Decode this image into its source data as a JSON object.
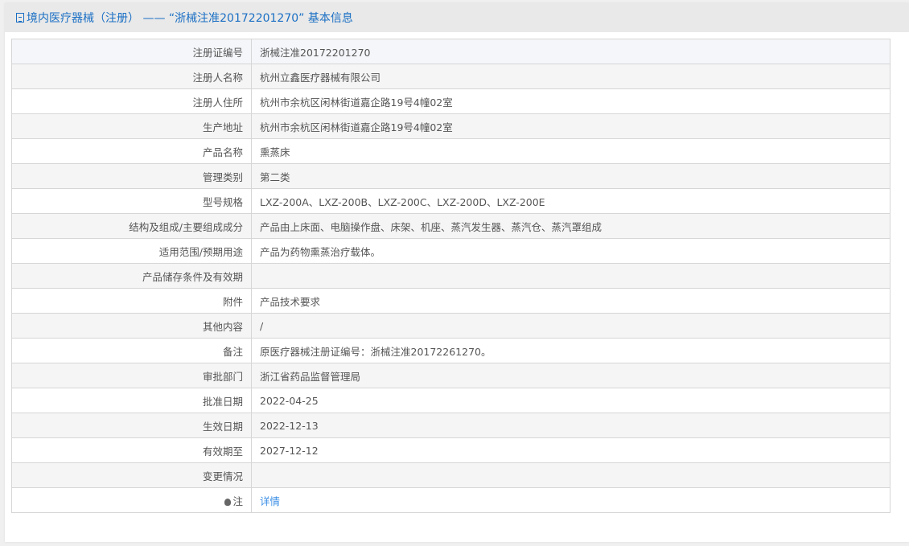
{
  "header": {
    "title": "境内医疗器械（注册） ——  “浙械注准20172201270”  基本信息",
    "icon": "document-icon"
  },
  "rows": [
    {
      "label": "注册证编号",
      "value": "浙械注准20172201270"
    },
    {
      "label": "注册人名称",
      "value": "杭州立鑫医疗器械有限公司"
    },
    {
      "label": "注册人住所",
      "value": "杭州市余杭区闲林街道嘉企路19号4幢02室"
    },
    {
      "label": "生产地址",
      "value": "杭州市余杭区闲林街道嘉企路19号4幢02室"
    },
    {
      "label": "产品名称",
      "value": "熏蒸床"
    },
    {
      "label": "管理类别",
      "value": "第二类"
    },
    {
      "label": "型号规格",
      "value": "LXZ-200A、LXZ-200B、LXZ-200C、LXZ-200D、LXZ-200E"
    },
    {
      "label": "结构及组成/主要组成成分",
      "value": "产品由上床面、电脑操作盘、床架、机座、蒸汽发生器、蒸汽仓、蒸汽罩组成"
    },
    {
      "label": "适用范围/预期用途",
      "value": "产品为药物熏蒸治疗载体。"
    },
    {
      "label": "产品储存条件及有效期",
      "value": ""
    },
    {
      "label": "附件",
      "value": "产品技术要求"
    },
    {
      "label": "其他内容",
      "value": "/"
    },
    {
      "label": "备注",
      "value": "原医疗器械注册证编号：浙械注准20172261270。"
    },
    {
      "label": "审批部门",
      "value": "浙江省药品监督管理局"
    },
    {
      "label": "批准日期",
      "value": "2022-04-25"
    },
    {
      "label": "生效日期",
      "value": "2022-12-13"
    },
    {
      "label": "有效期至",
      "value": "2027-12-12"
    },
    {
      "label": "变更情况",
      "value": ""
    }
  ],
  "note_row": {
    "label": "注",
    "icon": "lightbulb-icon",
    "link": "详情"
  }
}
